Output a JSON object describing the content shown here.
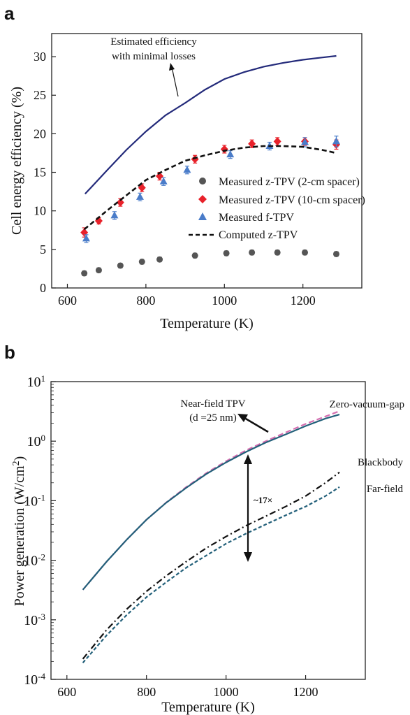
{
  "chart_data": [
    {
      "panel": "a",
      "type": "scatter",
      "xlabel": "Temperature (K)",
      "ylabel": "Cell energy efficiency (%)",
      "xlim": [
        560,
        1350
      ],
      "ylim": [
        0,
        33
      ],
      "xticks": [
        600,
        800,
        1000,
        1200
      ],
      "yticks": [
        0,
        5,
        10,
        15,
        20,
        25,
        30
      ],
      "legend_position": "center-right",
      "grid": false,
      "annotation": {
        "lines": [
          "Estimated efficiency",
          "with minimal losses"
        ]
      },
      "series": [
        {
          "name": "Estimated efficiency with minimal losses",
          "kind": "line",
          "style": "solid",
          "color": "#232a7a",
          "show_in_legend": false,
          "x": [
            645,
            700,
            750,
            800,
            850,
            900,
            950,
            1000,
            1050,
            1100,
            1150,
            1200,
            1250,
            1285
          ],
          "y": [
            12.2,
            15.2,
            17.9,
            20.3,
            22.4,
            24.0,
            25.7,
            27.1,
            28.0,
            28.7,
            29.2,
            29.6,
            29.9,
            30.1
          ]
        },
        {
          "name": "Measured z-TPV (2-cm spacer)",
          "kind": "points",
          "marker": "circle",
          "color": "#555555",
          "show_in_legend": true,
          "x": [
            643,
            680,
            735,
            790,
            835,
            925,
            1005,
            1070,
            1135,
            1205,
            1285
          ],
          "y": [
            1.9,
            2.3,
            2.9,
            3.4,
            3.7,
            4.2,
            4.5,
            4.6,
            4.6,
            4.6,
            4.4
          ],
          "err": [
            0.3,
            0.3,
            0.3,
            0.3,
            0.3,
            0.3,
            0.3,
            0.3,
            0.3,
            0.3,
            0.3
          ]
        },
        {
          "name": "Measured z-TPV (10-cm spacer)",
          "kind": "points",
          "marker": "diamond",
          "color": "#e8212a",
          "show_in_legend": true,
          "x": [
            643,
            680,
            735,
            790,
            835,
            925,
            1000,
            1070,
            1135,
            1205,
            1285
          ],
          "y": [
            7.2,
            8.7,
            11.1,
            13.0,
            14.5,
            16.7,
            18.0,
            18.7,
            19.0,
            19.0,
            18.6
          ],
          "err": [
            0.6,
            0.4,
            0.5,
            0.5,
            0.5,
            0.5,
            0.5,
            0.5,
            0.5,
            0.5,
            0.6
          ]
        },
        {
          "name": "Measured f-TPV",
          "kind": "points",
          "marker": "triangle",
          "color": "#4a7cc9",
          "show_in_legend": true,
          "x": [
            648,
            720,
            785,
            845,
            905,
            1015,
            1115,
            1205,
            1285
          ],
          "y": [
            6.4,
            9.4,
            11.8,
            13.8,
            15.3,
            17.3,
            18.4,
            18.9,
            19.0
          ],
          "err": [
            0.5,
            0.5,
            0.5,
            0.5,
            0.5,
            0.5,
            0.5,
            0.6,
            0.7
          ]
        },
        {
          "name": "Computed z-TPV",
          "kind": "line",
          "style": "dashed",
          "color": "#111111",
          "show_in_legend": true,
          "x": [
            643,
            700,
            750,
            800,
            850,
            900,
            950,
            1000,
            1050,
            1100,
            1150,
            1200,
            1250,
            1285
          ],
          "y": [
            7.6,
            10.0,
            12.0,
            14.0,
            15.3,
            16.5,
            17.2,
            17.8,
            18.2,
            18.4,
            18.4,
            18.3,
            17.9,
            17.5
          ]
        }
      ]
    },
    {
      "panel": "b",
      "type": "line",
      "xlabel": "Temperature (K)",
      "ylabel": "Power generation (W/cm²)",
      "log_y": true,
      "xlim": [
        560,
        1350
      ],
      "ylim": [
        0.0001,
        10
      ],
      "xticks": [
        600,
        800,
        1000,
        1200
      ],
      "ytick_labels": [
        "10-4",
        "10-3",
        "10-2",
        "10-1",
        "100",
        "101"
      ],
      "grid": false,
      "annotation_nearfield": [
        "Near-field TPV",
        "(d =25 nm)"
      ],
      "annotation_factor": "~17×",
      "series": [
        {
          "name": "Zero-vacuum-gap",
          "style": "dashed",
          "color": "#d46fb0",
          "x": [
            640,
            700,
            750,
            800,
            850,
            900,
            950,
            1000,
            1050,
            1100,
            1150,
            1200,
            1250,
            1285
          ],
          "y": [
            0.0032,
            0.0095,
            0.022,
            0.048,
            0.094,
            0.17,
            0.29,
            0.46,
            0.7,
            1.0,
            1.4,
            1.95,
            2.6,
            3.2
          ]
        },
        {
          "name": "Near-field TPV",
          "style": "solid",
          "color": "#23607a",
          "x": [
            640,
            700,
            750,
            800,
            850,
            900,
            950,
            1000,
            1050,
            1100,
            1150,
            1200,
            1250,
            1285
          ],
          "y": [
            0.0032,
            0.0095,
            0.022,
            0.048,
            0.093,
            0.165,
            0.28,
            0.44,
            0.66,
            0.95,
            1.3,
            1.8,
            2.4,
            2.8
          ]
        },
        {
          "name": "Blackbody",
          "style": "dashdot",
          "color": "#111111",
          "x": [
            640,
            700,
            750,
            800,
            850,
            900,
            950,
            1000,
            1050,
            1100,
            1150,
            1200,
            1250,
            1285
          ],
          "y": [
            0.00022,
            0.00068,
            0.0015,
            0.003,
            0.0055,
            0.0095,
            0.016,
            0.025,
            0.038,
            0.055,
            0.08,
            0.12,
            0.2,
            0.3
          ]
        },
        {
          "name": "Far-field",
          "style": "dotted",
          "color": "#23607a",
          "x": [
            640,
            700,
            750,
            800,
            850,
            900,
            950,
            1000,
            1050,
            1100,
            1150,
            1200,
            1250,
            1285
          ],
          "y": [
            0.00019,
            0.00055,
            0.0012,
            0.0024,
            0.0043,
            0.0075,
            0.012,
            0.019,
            0.028,
            0.04,
            0.057,
            0.08,
            0.12,
            0.17
          ]
        }
      ]
    }
  ]
}
